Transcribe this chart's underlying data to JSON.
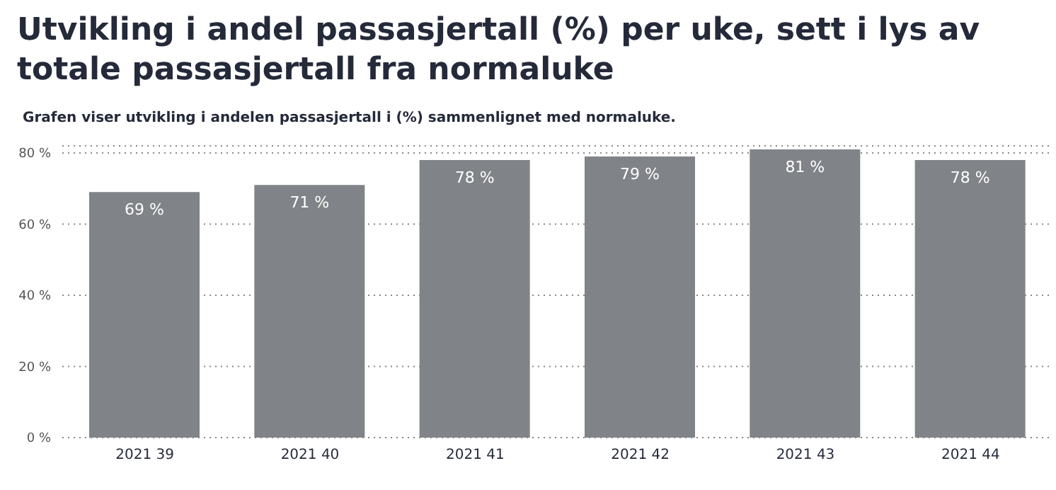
{
  "chart_data": {
    "type": "bar",
    "title": "Utvikling i andel passasjertall (%) per uke, sett i lys av totale passasjertall fra normaluke",
    "subtitle": "Grafen viser utvikling i andelen passasjertall i (%) sammenlignet med normaluke.",
    "categories": [
      "2021 39",
      "2021 40",
      "2021 41",
      "2021 42",
      "2021 43",
      "2021 44"
    ],
    "values": [
      69,
      71,
      78,
      79,
      81,
      78
    ],
    "value_labels": [
      "69 %",
      "71 %",
      "78 %",
      "79 %",
      "81 %",
      "78 %"
    ],
    "color": "#808387",
    "ylim": [
      0,
      82
    ],
    "yticks": [
      {
        "value": 0,
        "label": "0 %"
      },
      {
        "value": 20,
        "label": "20 %"
      },
      {
        "value": 40,
        "label": "40 %"
      },
      {
        "value": 60,
        "label": "60 %"
      },
      {
        "value": 80,
        "label": "80 %"
      }
    ],
    "grid": "y"
  }
}
